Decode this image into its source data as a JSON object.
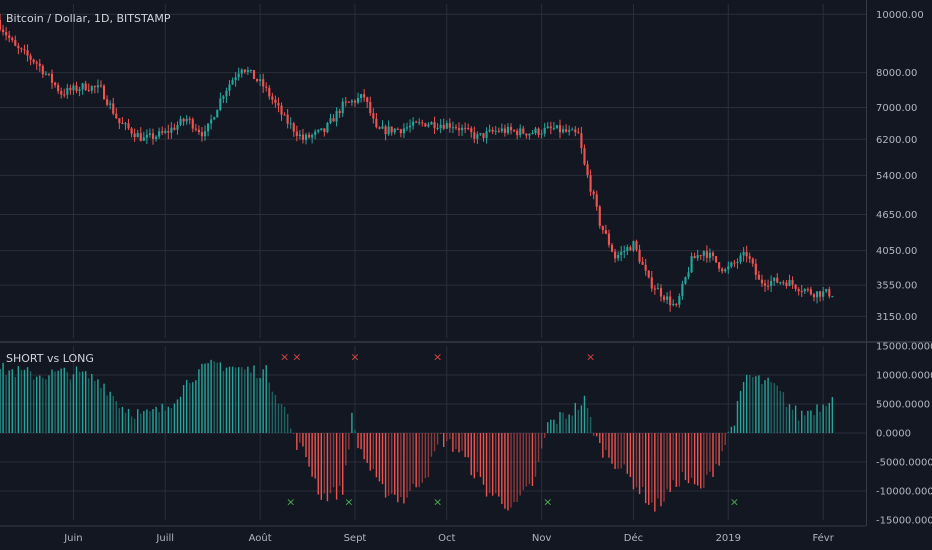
{
  "chart_data": [
    {
      "type": "candlestick",
      "title": "Bitcoin / Dollar, 1D, BITSTAMP",
      "yscale": "log",
      "ylim": [
        2900,
        10400
      ],
      "y_ticks": [
        "10000.00",
        "8000.00",
        "7000.00",
        "6200.00",
        "5400.00",
        "4650.00",
        "4050.00",
        "3550.00",
        "3150.00"
      ],
      "y_tick_values": [
        10000,
        8000,
        7000,
        6200,
        5400,
        4650,
        4050,
        3550,
        3150
      ],
      "x_range": [
        "2018-05-08",
        "2019-02-15"
      ],
      "up_color": "#26a69a",
      "down_color": "#ef5350",
      "close_anchors": [
        [
          "2018-05-08",
          9600
        ],
        [
          "2018-05-13",
          8800
        ],
        [
          "2018-05-20",
          8300
        ],
        [
          "2018-05-28",
          7400
        ],
        [
          "2018-06-05",
          7600
        ],
        [
          "2018-06-10",
          7500
        ],
        [
          "2018-06-16",
          6600
        ],
        [
          "2018-06-24",
          6200
        ],
        [
          "2018-07-01",
          6350
        ],
        [
          "2018-07-08",
          6700
        ],
        [
          "2018-07-14",
          6300
        ],
        [
          "2018-07-20",
          7400
        ],
        [
          "2018-07-26",
          8200
        ],
        [
          "2018-08-02",
          7600
        ],
        [
          "2018-08-09",
          6700
        ],
        [
          "2018-08-15",
          6200
        ],
        [
          "2018-08-22",
          6400
        ],
        [
          "2018-08-28",
          7050
        ],
        [
          "2018-09-04",
          7300
        ],
        [
          "2018-09-08",
          6400
        ],
        [
          "2018-09-16",
          6450
        ],
        [
          "2018-09-24",
          6600
        ],
        [
          "2018-10-03",
          6550
        ],
        [
          "2018-10-11",
          6250
        ],
        [
          "2018-10-18",
          6420
        ],
        [
          "2018-10-28",
          6360
        ],
        [
          "2018-11-05",
          6450
        ],
        [
          "2018-11-13",
          6300
        ],
        [
          "2018-11-15",
          5600
        ],
        [
          "2018-11-20",
          4500
        ],
        [
          "2018-11-25",
          3950
        ],
        [
          "2018-12-01",
          4150
        ],
        [
          "2018-12-06",
          3600
        ],
        [
          "2018-12-15",
          3250
        ],
        [
          "2018-12-20",
          3900
        ],
        [
          "2018-12-24",
          4050
        ],
        [
          "2018-12-31",
          3750
        ],
        [
          "2019-01-07",
          4000
        ],
        [
          "2019-01-11",
          3600
        ],
        [
          "2019-01-20",
          3600
        ],
        [
          "2019-01-28",
          3450
        ],
        [
          "2019-02-04",
          3440
        ]
      ]
    },
    {
      "type": "histogram",
      "title": "SHORT vs LONG",
      "ylim": [
        -15000,
        15000
      ],
      "y_ticks": [
        "15000.0000",
        "10000.0000",
        "5000.0000",
        "0.0000",
        "-5000.0000",
        "-10000.0000",
        "-15000.0000"
      ],
      "y_tick_values": [
        15000,
        10000,
        5000,
        0,
        -5000,
        -10000,
        -15000
      ],
      "positive_color": "#26a69a",
      "negative_color": "#ef5350",
      "value_anchors": [
        [
          "2018-05-08",
          11000
        ],
        [
          "2018-05-20",
          10000
        ],
        [
          "2018-06-01",
          10500
        ],
        [
          "2018-06-10",
          9000
        ],
        [
          "2018-06-17",
          4500
        ],
        [
          "2018-06-24",
          3000
        ],
        [
          "2018-07-01",
          4200
        ],
        [
          "2018-07-10",
          10000
        ],
        [
          "2018-07-18",
          12000
        ],
        [
          "2018-07-26",
          11000
        ],
        [
          "2018-08-03",
          10500
        ],
        [
          "2018-08-10",
          3000
        ],
        [
          "2018-08-12",
          -1000
        ],
        [
          "2018-08-16",
          -4000
        ],
        [
          "2018-08-21",
          -11000
        ],
        [
          "2018-08-28",
          -10000
        ],
        [
          "2018-08-31",
          2500
        ],
        [
          "2018-09-02",
          -2000
        ],
        [
          "2018-09-09",
          -9500
        ],
        [
          "2018-09-17",
          -11500
        ],
        [
          "2018-09-25",
          -6500
        ],
        [
          "2018-09-29",
          -1000
        ],
        [
          "2018-10-05",
          -3000
        ],
        [
          "2018-10-14",
          -10000
        ],
        [
          "2018-10-23",
          -13000
        ],
        [
          "2018-10-30",
          -8000
        ],
        [
          "2018-11-03",
          1500
        ],
        [
          "2018-11-10",
          3500
        ],
        [
          "2018-11-15",
          5500
        ],
        [
          "2018-11-18",
          500
        ],
        [
          "2018-11-20",
          -2500
        ],
        [
          "2018-11-27",
          -6000
        ],
        [
          "2018-12-08",
          -13000
        ],
        [
          "2018-12-17",
          -7500
        ],
        [
          "2018-12-23",
          -10000
        ],
        [
          "2018-12-29",
          -4500
        ],
        [
          "2019-01-03",
          2500
        ],
        [
          "2019-01-07",
          10000
        ],
        [
          "2019-01-16",
          8000
        ],
        [
          "2019-01-24",
          3000
        ],
        [
          "2019-02-01",
          5000
        ],
        [
          "2019-02-04",
          7000
        ]
      ],
      "sell_signals": [
        "2018-08-09",
        "2018-08-13",
        "2018-09-01",
        "2018-09-28",
        "2018-11-17"
      ],
      "buy_signals": [
        "2018-08-11",
        "2018-08-30",
        "2018-09-28",
        "2018-11-03",
        "2019-01-03"
      ],
      "sell_color": "#e0463d",
      "buy_color": "#4caf50"
    }
  ],
  "x_axis": {
    "ticks": [
      {
        "label": "Juin",
        "date": "2018-06-01"
      },
      {
        "label": "Juill",
        "date": "2018-07-01"
      },
      {
        "label": "Août",
        "date": "2018-08-01"
      },
      {
        "label": "Sept",
        "date": "2018-09-01"
      },
      {
        "label": "Oct",
        "date": "2018-10-01"
      },
      {
        "label": "Nov",
        "date": "2018-11-01"
      },
      {
        "label": "Déc",
        "date": "2018-12-01"
      },
      {
        "label": "2019",
        "date": "2019-01-01"
      },
      {
        "label": "Févr",
        "date": "2019-02-01"
      }
    ]
  },
  "grid": true,
  "colors": {
    "background": "#131722",
    "grid": "#2a2e39",
    "text": "#b2b5be",
    "divider": "#363a45"
  }
}
